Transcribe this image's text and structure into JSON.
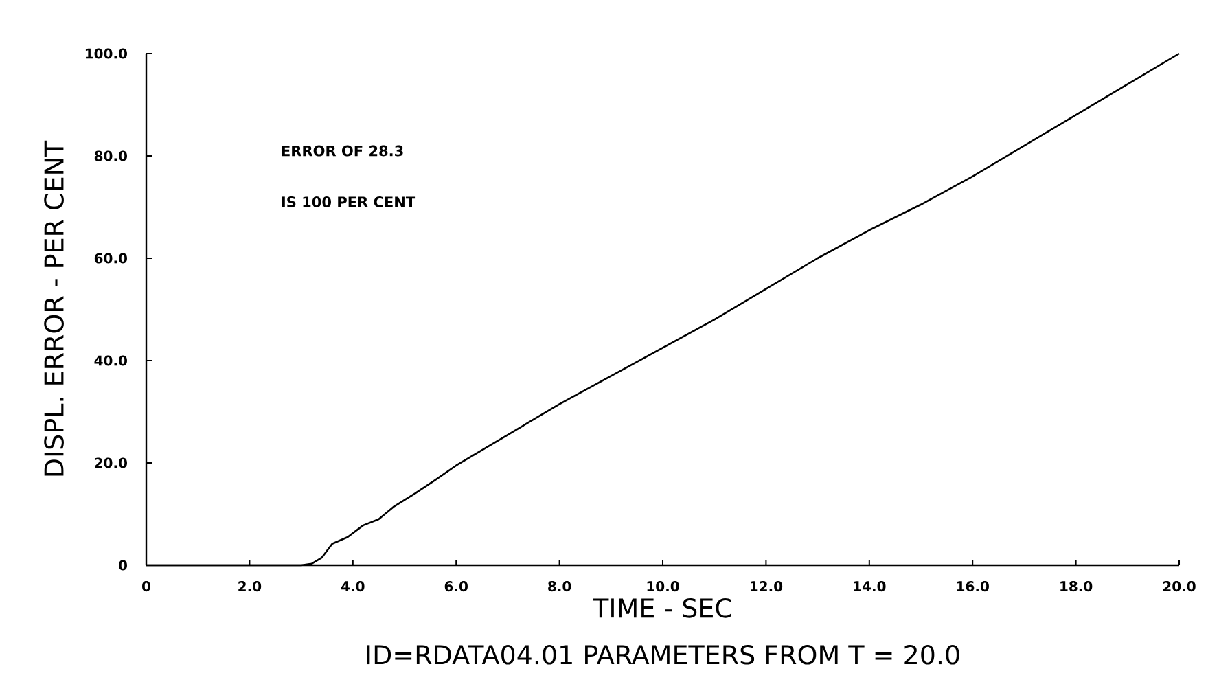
{
  "chart_data": {
    "type": "line",
    "xlabel": "TIME - SEC",
    "ylabel": "DISPL. ERROR - PER CENT",
    "annotations": [
      "ERROR OF 28.3",
      "IS 100 PER CENT",
      "ID=RDATA04.01   PARAMETERS FROM T = 20.0"
    ],
    "x": [
      0,
      1,
      2,
      3,
      3.2,
      3.4,
      3.6,
      3.9,
      4.2,
      4.5,
      4.8,
      5.2,
      5.6,
      6.0,
      6.5,
      7,
      8,
      9,
      10,
      11,
      12,
      13,
      14,
      15,
      16,
      17,
      18,
      19,
      20
    ],
    "values": [
      0,
      0,
      0,
      0,
      0.3,
      1.5,
      4.2,
      5.5,
      7.8,
      9,
      11.5,
      14,
      16.7,
      19.5,
      22.5,
      25.5,
      31.5,
      37,
      42.5,
      48,
      54,
      60,
      65.5,
      70.5,
      76,
      82,
      88,
      94,
      100
    ],
    "color": "#000000",
    "xlim": [
      0,
      20
    ],
    "ylim": [
      0,
      100
    ],
    "xticks": [
      {
        "value": 0,
        "label": "0"
      },
      {
        "value": 2,
        "label": "2.0"
      },
      {
        "value": 4,
        "label": "4.0"
      },
      {
        "value": 6,
        "label": "6.0"
      },
      {
        "value": 8,
        "label": "8.0"
      },
      {
        "value": 10,
        "label": "10.0"
      },
      {
        "value": 12,
        "label": "12.0"
      },
      {
        "value": 14,
        "label": "14.0"
      },
      {
        "value": 16,
        "label": "16.0"
      },
      {
        "value": 18,
        "label": "18.0"
      },
      {
        "value": 20,
        "label": "20.0"
      }
    ],
    "yticks": [
      {
        "value": 0,
        "label": "0"
      },
      {
        "value": 20,
        "label": "20.0"
      },
      {
        "value": 40,
        "label": "40.0"
      },
      {
        "value": 60,
        "label": "60.0"
      },
      {
        "value": 80,
        "label": "80.0"
      },
      {
        "value": 100,
        "label": "100.0"
      }
    ]
  }
}
